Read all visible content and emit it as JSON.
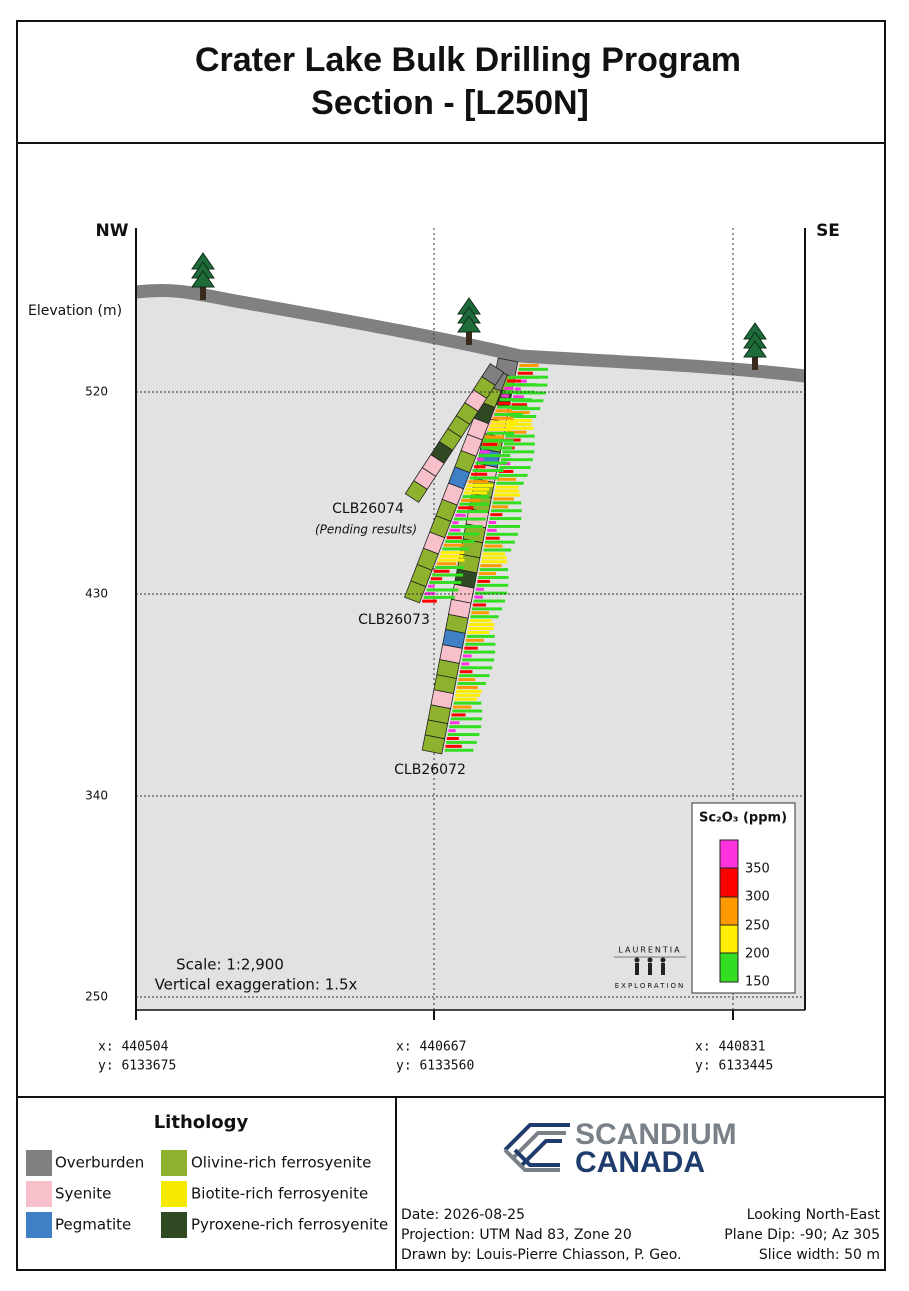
{
  "header": {
    "title_line1": "Crater Lake Bulk Drilling Program",
    "title_line2": "Section - [L250N]"
  },
  "section": {
    "left_label": "NW",
    "right_label": "SE",
    "elevation_label": "Elevation (m)",
    "elevation_ticks": [
      "520",
      "430",
      "340",
      "250"
    ],
    "eastings": [
      {
        "x": "x: 440504",
        "y": "y: 6133675"
      },
      {
        "x": "x: 440667",
        "y": "y: 6133560"
      },
      {
        "x": "x: 440831",
        "y": "y: 6133445"
      }
    ],
    "holes": [
      {
        "name": "CLB26074",
        "note": "(Pending results)"
      },
      {
        "name": "CLB26073"
      },
      {
        "name": "CLB26072"
      }
    ],
    "scale": "Scale: 1:2,900",
    "exaggeration": "Vertical exaggeration: 1.5x",
    "grade_legend": {
      "title": "Sc₂O₃ (ppm)",
      "levels": [
        "350",
        "300",
        "250",
        "200",
        "150"
      ]
    },
    "logo": {
      "top": "LAURENTIA",
      "bottom": "EXPLORATION"
    }
  },
  "lithology": {
    "title": "Lithology",
    "items": [
      "Overburden",
      "Syenite",
      "Pegmatite",
      "Olivine-rich ferrosyenite",
      "Biotite-rich ferrosyenite",
      "Pyroxene-rich ferrosyenite"
    ]
  },
  "company": {
    "line1": "SCANDIUM",
    "line2": "CANADA"
  },
  "footer": {
    "date": "Date: 2026-08-25",
    "projection": "Projection: UTM Nad 83, Zone 20",
    "drawn_by": "Drawn by: Louis-Pierre Chiasson, P. Geo.",
    "view": "Looking North-East",
    "plane": "Plane Dip: -90; Az 305",
    "slice": "Slice width: 50 m"
  }
}
